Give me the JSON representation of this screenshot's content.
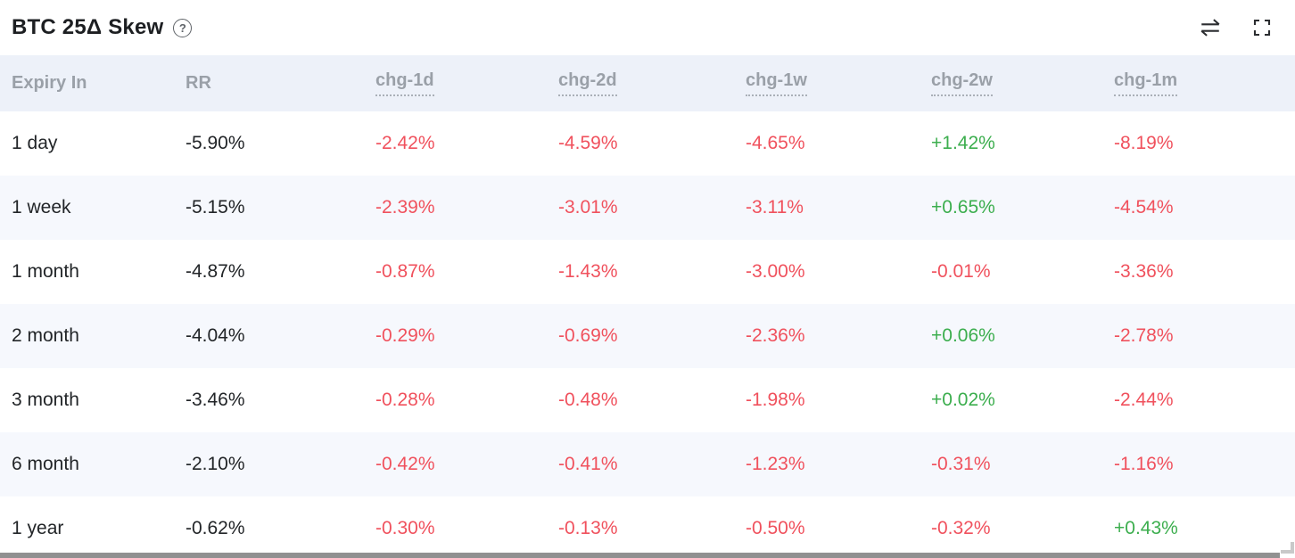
{
  "widget": {
    "title": "BTC 25Δ Skew",
    "help_glyph": "?",
    "toolbar": {
      "swap_icon": "swap-horizontal",
      "fullscreen_icon": "fullscreen-expand"
    }
  },
  "colors": {
    "negative": "#f0515d",
    "positive": "#3cae4e",
    "header_bg": "#edf1f9",
    "stripe_bg": "#f6f8fd",
    "header_text": "#9aa0a8",
    "body_text": "#222528"
  },
  "table": {
    "columns": [
      {
        "key": "expiry",
        "label": "Expiry In",
        "dotted_underline": false
      },
      {
        "key": "rr",
        "label": "RR",
        "dotted_underline": false
      },
      {
        "key": "chg_1d",
        "label": "chg-1d",
        "dotted_underline": true
      },
      {
        "key": "chg_2d",
        "label": "chg-2d",
        "dotted_underline": true
      },
      {
        "key": "chg_1w",
        "label": "chg-1w",
        "dotted_underline": true
      },
      {
        "key": "chg_2w",
        "label": "chg-2w",
        "dotted_underline": true
      },
      {
        "key": "chg_1m",
        "label": "chg-1m",
        "dotted_underline": true
      }
    ],
    "rows": [
      {
        "expiry": "1 day",
        "rr": "-5.90%",
        "chg_1d": "-2.42%",
        "chg_2d": "-4.59%",
        "chg_1w": "-4.65%",
        "chg_2w": "+1.42%",
        "chg_1m": "-8.19%"
      },
      {
        "expiry": "1 week",
        "rr": "-5.15%",
        "chg_1d": "-2.39%",
        "chg_2d": "-3.01%",
        "chg_1w": "-3.11%",
        "chg_2w": "+0.65%",
        "chg_1m": "-4.54%"
      },
      {
        "expiry": "1 month",
        "rr": "-4.87%",
        "chg_1d": "-0.87%",
        "chg_2d": "-1.43%",
        "chg_1w": "-3.00%",
        "chg_2w": "-0.01%",
        "chg_1m": "-3.36%"
      },
      {
        "expiry": "2 month",
        "rr": "-4.04%",
        "chg_1d": "-0.29%",
        "chg_2d": "-0.69%",
        "chg_1w": "-2.36%",
        "chg_2w": "+0.06%",
        "chg_1m": "-2.78%"
      },
      {
        "expiry": "3 month",
        "rr": "-3.46%",
        "chg_1d": "-0.28%",
        "chg_2d": "-0.48%",
        "chg_1w": "-1.98%",
        "chg_2w": "+0.02%",
        "chg_1m": "-2.44%"
      },
      {
        "expiry": "6 month",
        "rr": "-2.10%",
        "chg_1d": "-0.42%",
        "chg_2d": "-0.41%",
        "chg_1w": "-1.23%",
        "chg_2w": "-0.31%",
        "chg_1m": "-1.16%"
      },
      {
        "expiry": "1 year",
        "rr": "-0.62%",
        "chg_1d": "-0.30%",
        "chg_2d": "-0.13%",
        "chg_1w": "-0.50%",
        "chg_2w": "-0.32%",
        "chg_1m": "+0.43%"
      }
    ]
  }
}
